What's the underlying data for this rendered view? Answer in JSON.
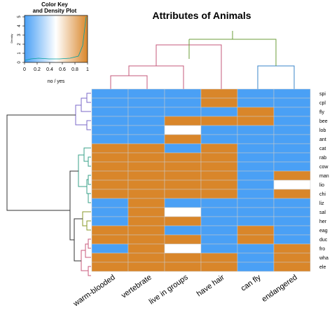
{
  "chart_data": {
    "type": "heatmap",
    "title": "Attributes of Animals",
    "columns": [
      "warm-blooded",
      "vertebrate",
      "live in groups",
      "have hair",
      "can fly",
      "endangered"
    ],
    "rows": [
      "spi",
      "cpl",
      "fly",
      "bee",
      "lob",
      "ant",
      "cat",
      "rab",
      "cow",
      "man",
      "lio",
      "chi",
      "liz",
      "sal",
      "her",
      "eag",
      "duc",
      "fro",
      "wha",
      "ele"
    ],
    "values": [
      [
        0,
        0,
        0,
        1,
        0,
        0
      ],
      [
        0,
        0,
        0,
        1,
        0,
        0
      ],
      [
        0,
        0,
        0,
        0,
        1,
        0
      ],
      [
        0,
        0,
        1,
        1,
        1,
        0
      ],
      [
        0,
        0,
        null,
        0,
        0,
        0
      ],
      [
        0,
        0,
        1,
        0,
        0,
        0
      ],
      [
        1,
        1,
        0,
        1,
        0,
        0
      ],
      [
        1,
        1,
        1,
        1,
        0,
        0
      ],
      [
        1,
        1,
        1,
        1,
        0,
        0
      ],
      [
        1,
        1,
        1,
        1,
        0,
        1
      ],
      [
        1,
        1,
        1,
        1,
        0,
        null
      ],
      [
        1,
        1,
        1,
        1,
        0,
        1
      ],
      [
        0,
        1,
        0,
        0,
        0,
        0
      ],
      [
        0,
        1,
        null,
        0,
        0,
        0
      ],
      [
        0,
        1,
        1,
        0,
        0,
        0
      ],
      [
        1,
        1,
        0,
        0,
        1,
        0
      ],
      [
        1,
        1,
        1,
        0,
        1,
        0
      ],
      [
        0,
        1,
        null,
        0,
        0,
        1
      ],
      [
        1,
        1,
        1,
        1,
        0,
        1
      ],
      [
        1,
        1,
        1,
        1,
        0,
        1
      ]
    ],
    "color_scale": {
      "low": "#4aa0f5",
      "mid": "#ffffff",
      "high": "#d9862a",
      "missing": "#ffffff"
    },
    "color_key": {
      "title": "Color Key",
      "subtitle": "and Density Plot",
      "xlabel": "no / yes",
      "ylabel": "Density",
      "x_ticks": [
        "0",
        "0.2",
        "0.4",
        "0.6",
        "0.8",
        "1"
      ],
      "y_ticks": [
        "0",
        "1",
        "2",
        "3",
        "4",
        "5"
      ]
    }
  }
}
